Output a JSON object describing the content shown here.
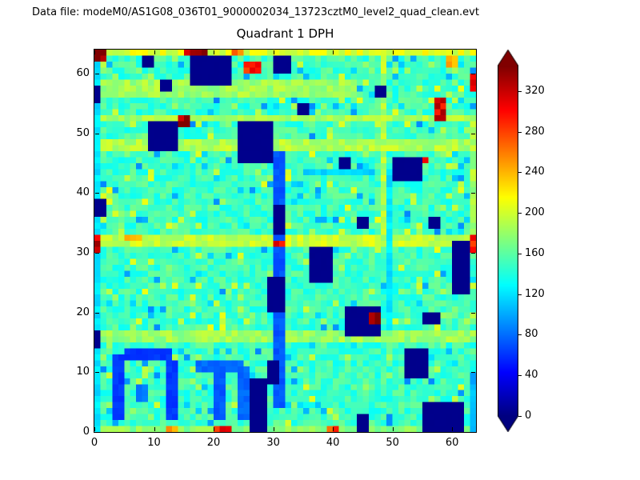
{
  "header": {
    "datafile_label": "Data file: modeM0/AS1G08_036T01_9000002034_13723cztM0_level2_quad_clean.evt"
  },
  "chart_data": {
    "type": "heatmap",
    "title": "Quadrant 1 DPH",
    "colormap": "jet",
    "grid_size": [
      64,
      64
    ],
    "x_range": [
      0,
      64
    ],
    "y_range": [
      0,
      64
    ],
    "x_ticks": [
      0,
      10,
      20,
      30,
      40,
      50,
      60
    ],
    "y_ticks": [
      0,
      10,
      20,
      30,
      40,
      50,
      60
    ],
    "colorbar": {
      "ticks": [
        0,
        40,
        80,
        120,
        160,
        200,
        240,
        280,
        320
      ],
      "vmin": 0,
      "vmax": 345,
      "extend": "both",
      "under_color": "#000080",
      "over_color": "#800000"
    },
    "base_value": 150,
    "noise_amplitude": 18,
    "seed": 42,
    "speckles": {
      "blue_fraction": 0.05,
      "blue_value": 105,
      "green_fraction": 0.07,
      "green_value": 192
    },
    "features": [
      {
        "x": 0,
        "y": 15,
        "w": 64,
        "h": 2,
        "v": 182
      },
      {
        "x": 0,
        "y": 31,
        "w": 64,
        "h": 2,
        "v": 196
      },
      {
        "x": 0,
        "y": 47,
        "w": 64,
        "h": 2,
        "v": 188
      },
      {
        "x": 0,
        "y": 52,
        "w": 64,
        "h": 1,
        "v": 186
      },
      {
        "x": 0,
        "y": 56,
        "w": 44,
        "h": 3,
        "v": 183
      },
      {
        "x": 0,
        "y": 63,
        "w": 64,
        "h": 1,
        "v": 206
      },
      {
        "x": 0,
        "y": 0,
        "w": 64,
        "h": 1,
        "v": 176
      },
      {
        "x": 48,
        "y": 32,
        "w": 1,
        "h": 31,
        "v": 190
      },
      {
        "x": 0,
        "y": 0,
        "w": 1,
        "h": 64,
        "v": 120
      },
      {
        "x": 63,
        "y": 33,
        "w": 1,
        "h": 20,
        "v": 186
      },
      {
        "x": 63,
        "y": 0,
        "w": 1,
        "h": 10,
        "v": 105
      },
      {
        "x": 35,
        "y": 43,
        "w": 12,
        "h": 1,
        "v": 115
      },
      {
        "x": 49,
        "y": 17,
        "w": 1,
        "h": 27,
        "v": 122
      },
      {
        "x": 16,
        "y": 58,
        "w": 7,
        "h": 5,
        "v": 4
      },
      {
        "x": 30,
        "y": 60,
        "w": 3,
        "h": 3,
        "v": 4
      },
      {
        "x": 9,
        "y": 47,
        "w": 5,
        "h": 5,
        "v": 4
      },
      {
        "x": 24,
        "y": 45,
        "w": 6,
        "h": 7,
        "v": 4
      },
      {
        "x": 30,
        "y": 4,
        "w": 2,
        "h": 43,
        "v": 72
      },
      {
        "x": 29,
        "y": 20,
        "w": 3,
        "h": 6,
        "v": 4
      },
      {
        "x": 30,
        "y": 33,
        "w": 2,
        "h": 5,
        "v": 4
      },
      {
        "x": 29,
        "y": 8,
        "w": 2,
        "h": 4,
        "v": 4
      },
      {
        "x": 36,
        "y": 25,
        "w": 4,
        "h": 6,
        "v": 4
      },
      {
        "x": 42,
        "y": 16,
        "w": 6,
        "h": 5,
        "v": 4
      },
      {
        "x": 50,
        "y": 42,
        "w": 5,
        "h": 4,
        "v": 4
      },
      {
        "x": 60,
        "y": 23,
        "w": 3,
        "h": 9,
        "v": 4
      },
      {
        "x": 55,
        "y": 0,
        "w": 7,
        "h": 5,
        "v": 4
      },
      {
        "x": 26,
        "y": 0,
        "w": 3,
        "h": 9,
        "v": 4
      },
      {
        "x": 52,
        "y": 9,
        "w": 4,
        "h": 5,
        "v": 4
      },
      {
        "x": 3,
        "y": 2,
        "w": 2,
        "h": 11,
        "v": 62
      },
      {
        "x": 5,
        "y": 12,
        "w": 8,
        "h": 2,
        "v": 62
      },
      {
        "x": 12,
        "y": 2,
        "w": 2,
        "h": 10,
        "v": 62
      },
      {
        "x": 7,
        "y": 5,
        "w": 2,
        "h": 3,
        "v": 85
      },
      {
        "x": 17,
        "y": 10,
        "w": 8,
        "h": 2,
        "v": 78
      },
      {
        "x": 24,
        "y": 2,
        "w": 2,
        "h": 9,
        "v": 78
      },
      {
        "x": 20,
        "y": 2,
        "w": 2,
        "h": 8,
        "v": 72
      },
      {
        "x": 34,
        "y": 53,
        "w": 2,
        "h": 2,
        "v": 4
      },
      {
        "x": 8,
        "y": 61,
        "w": 2,
        "h": 2,
        "v": 4
      },
      {
        "x": 11,
        "y": 57,
        "w": 2,
        "h": 2,
        "v": 4
      },
      {
        "x": 44,
        "y": 34,
        "w": 2,
        "h": 2,
        "v": 4
      },
      {
        "x": 56,
        "y": 34,
        "w": 2,
        "h": 2,
        "v": 4
      },
      {
        "x": 47,
        "y": 56,
        "w": 2,
        "h": 2,
        "v": 4
      },
      {
        "x": 41,
        "y": 44,
        "w": 2,
        "h": 2,
        "v": 4
      },
      {
        "x": 55,
        "y": 18,
        "w": 3,
        "h": 2,
        "v": 4
      },
      {
        "x": 44,
        "y": 0,
        "w": 2,
        "h": 3,
        "v": 4
      },
      {
        "x": 0,
        "y": 36,
        "w": 2,
        "h": 3,
        "v": 4
      },
      {
        "x": 0,
        "y": 14,
        "w": 1,
        "h": 3,
        "v": 4
      },
      {
        "x": 0,
        "y": 55,
        "w": 1,
        "h": 3,
        "v": 4
      },
      {
        "x": 0,
        "y": 62,
        "w": 2,
        "h": 2,
        "v": 336
      },
      {
        "x": 15,
        "y": 63,
        "w": 4,
        "h": 1,
        "v": 338
      },
      {
        "x": 25,
        "y": 60,
        "w": 3,
        "h": 2,
        "v": 302
      },
      {
        "x": 14,
        "y": 51,
        "w": 2,
        "h": 2,
        "v": 332
      },
      {
        "x": 46,
        "y": 18,
        "w": 2,
        "h": 2,
        "v": 335
      },
      {
        "x": 57,
        "y": 52,
        "w": 2,
        "h": 4,
        "v": 312
      },
      {
        "x": 63,
        "y": 57,
        "w": 1,
        "h": 3,
        "v": 325
      },
      {
        "x": 0,
        "y": 30,
        "w": 1,
        "h": 3,
        "v": 318
      },
      {
        "x": 63,
        "y": 30,
        "w": 1,
        "h": 3,
        "v": 300
      },
      {
        "x": 20,
        "y": 0,
        "w": 3,
        "h": 1,
        "v": 295
      },
      {
        "x": 39,
        "y": 0,
        "w": 2,
        "h": 1,
        "v": 285
      },
      {
        "x": 30,
        "y": 31,
        "w": 2,
        "h": 1,
        "v": 310
      },
      {
        "x": 23,
        "y": 63,
        "w": 2,
        "h": 1,
        "v": 262
      },
      {
        "x": 55,
        "y": 45,
        "w": 1,
        "h": 1,
        "v": 300
      },
      {
        "x": 5,
        "y": 32,
        "w": 3,
        "h": 1,
        "v": 250
      },
      {
        "x": 59,
        "y": 61,
        "w": 2,
        "h": 2,
        "v": 238
      },
      {
        "x": 12,
        "y": 0,
        "w": 2,
        "h": 1,
        "v": 258
      }
    ]
  }
}
